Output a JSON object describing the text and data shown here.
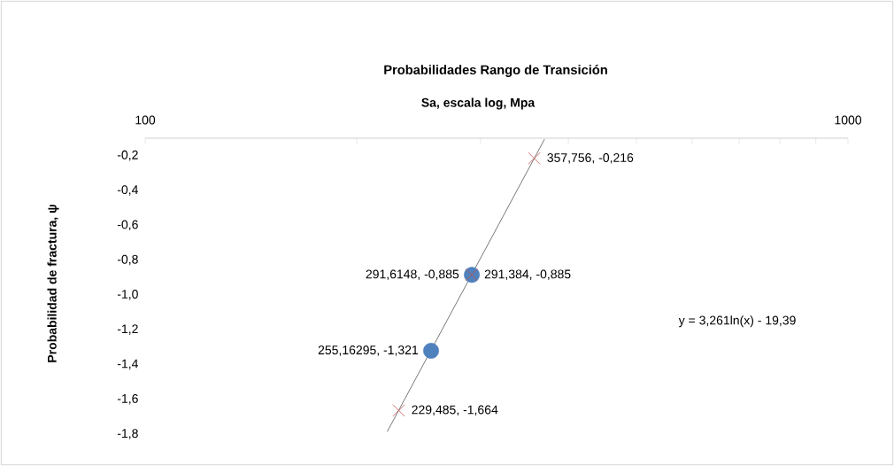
{
  "chart_data": {
    "type": "scatter",
    "title": "Probabilidades Rango de Transición",
    "xlabel": "Sa, escala log, Mpa",
    "ylabel": "Probabilidad de fractura, ψ",
    "log": "x",
    "grid": false,
    "xlim": [
      100,
      1000
    ],
    "ylim": [
      -1.8,
      -0.1
    ],
    "xticks": [
      100,
      {
        "value": 200,
        "label": null
      },
      {
        "value": 300,
        "label": null
      },
      {
        "value": 400,
        "label": null
      },
      {
        "value": 500,
        "label": null
      },
      {
        "value": 600,
        "label": null
      },
      {
        "value": 700,
        "label": null
      },
      {
        "value": 800,
        "label": null
      },
      {
        "value": 900,
        "label": null
      },
      1000
    ],
    "yticks": [
      {
        "value": -1.8,
        "label": "-1,8"
      },
      {
        "value": -1.6,
        "label": "-1,6"
      },
      {
        "value": -1.4,
        "label": "-1,4"
      },
      {
        "value": -1.2,
        "label": "-1,2"
      },
      {
        "value": -1.0,
        "label": "-1,0"
      },
      {
        "value": -0.8,
        "label": "-0,8"
      },
      {
        "value": -0.6,
        "label": "-0,6"
      },
      {
        "value": -0.4,
        "label": "-0,4"
      },
      {
        "value": -0.2,
        "label": "-0,2"
      }
    ],
    "series": [
      {
        "type": "line",
        "color": "#000000",
        "marker": "none",
        "x": [
          221,
          370
        ],
        "values": [
          -1.786,
          -0.106
        ]
      },
      {
        "color": "#4f81bd",
        "marker": "circle",
        "x": [
          291.6148,
          255.16295
        ],
        "values": [
          -0.885,
          -1.321
        ],
        "value_labels": [
          "291,6148, -0,885",
          "255,16295, -1,321"
        ]
      },
      {
        "color": "#c0504d",
        "marker": "cross",
        "x": [
          357.756,
          291.384,
          229.485
        ],
        "values": [
          -0.216,
          -0.885,
          -1.664
        ],
        "value_labels": [
          "357,756, -0,216",
          "291,384, -0,885",
          "229,485, -1,664"
        ]
      }
    ],
    "annotations": [
      "y = 3,261ln(x) - 19,39"
    ]
  }
}
